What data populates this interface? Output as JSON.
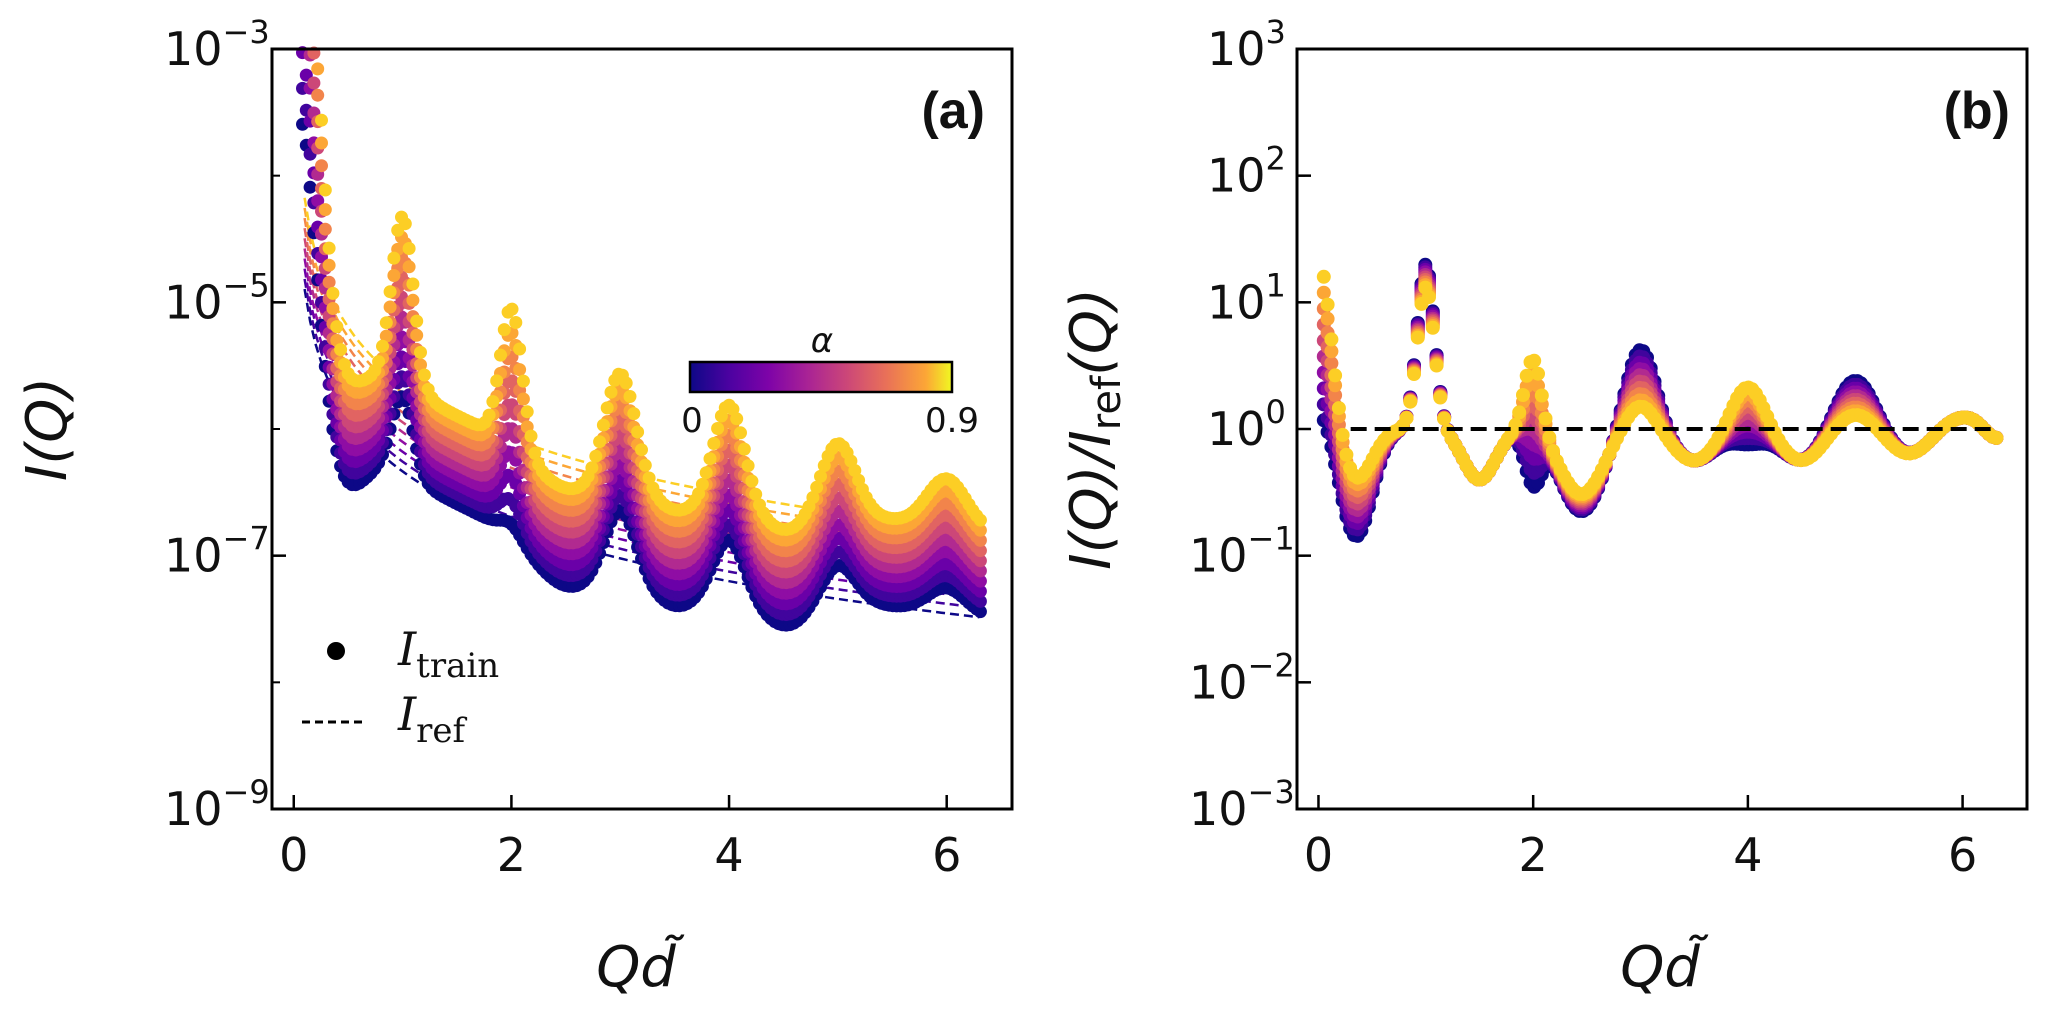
{
  "chart_data": [
    {
      "panel": "(a)",
      "type": "scatter",
      "yscale": "log",
      "xlabel": "Qd̃",
      "ylabel": "I(Q)",
      "xlim": [
        -0.2,
        6.6
      ],
      "ylim": [
        1e-09,
        0.001
      ],
      "xticks": [
        0,
        2,
        4,
        6
      ],
      "xtick_labels": [
        "0",
        "2",
        "4",
        "6"
      ],
      "yticks": [
        1e-09,
        1e-07,
        1e-05,
        0.001
      ],
      "ytick_labels": [
        {
          "base": "10",
          "exp": "−9"
        },
        {
          "base": "10",
          "exp": "−7"
        },
        {
          "base": "10",
          "exp": "−5"
        },
        {
          "base": "10",
          "exp": "−3"
        }
      ],
      "legend": {
        "position": "lower-left",
        "entries": [
          {
            "marker": "dot",
            "main": "I",
            "sub": "train"
          },
          {
            "marker": "dashed-line",
            "main": "I",
            "sub": "ref"
          }
        ]
      },
      "colorbar": {
        "label": "α",
        "min_label": "0",
        "max_label": "0.9",
        "cmap": "plasma",
        "position": "upper-right"
      },
      "series_param": "alpha",
      "alpha_values": [
        0,
        0.1,
        0.2,
        0.3,
        0.4,
        0.5,
        0.6,
        0.7,
        0.8,
        0.9
      ],
      "markers": "points I_train and dashed I_ref per alpha; peaks near Qd̃ = 1, 2, 3, 4, 5, 6",
      "representative_values": {
        "alpha_0": {
          "x": [
            0.1,
            0.5,
            1.0,
            2.0,
            3.0,
            4.0,
            5.0,
            6.3
          ],
          "y": [
            3e-06,
            6e-07,
            3e-05,
            1.2e-07,
            5e-08,
            1.2e-08,
            1e-08,
            4e-09
          ]
        },
        "alpha_0.9": {
          "x": [
            0.1,
            0.7,
            1.0,
            2.0,
            3.0,
            4.0,
            5.0,
            6.3
          ],
          "y": [
            0.001,
            3e-06,
            0.00015,
            1e-05,
            6e-07,
            2e-07,
            1e-07,
            3e-08
          ]
        }
      }
    },
    {
      "panel": "(b)",
      "type": "scatter",
      "yscale": "log",
      "xlabel": "Qd̃",
      "ylabel": "I(Q)/I_ref(Q)",
      "ylabel_parts": {
        "num": "I(Q)/",
        "den_main": "I",
        "den_sub": "ref",
        "den_tail": "(Q)"
      },
      "xlim": [
        -0.2,
        6.6
      ],
      "ylim": [
        0.001,
        1000.0
      ],
      "xticks": [
        0,
        2,
        4,
        6
      ],
      "xtick_labels": [
        "0",
        "2",
        "4",
        "6"
      ],
      "yticks": [
        0.001,
        0.01,
        0.1,
        1.0,
        10.0,
        100.0,
        1000.0
      ],
      "ytick_labels": [
        {
          "base": "10",
          "exp": "−3"
        },
        {
          "base": "10",
          "exp": "−2"
        },
        {
          "base": "10",
          "exp": "−1"
        },
        {
          "base": "10",
          "exp": "0"
        },
        {
          "base": "10",
          "exp": "1"
        },
        {
          "base": "10",
          "exp": "2"
        },
        {
          "base": "10",
          "exp": "3"
        }
      ],
      "reference_line": {
        "y": 1,
        "style": "dashed",
        "color": "#000000",
        "x_range": [
          0.3,
          6.3
        ]
      },
      "alpha_values": [
        0,
        0.1,
        0.2,
        0.3,
        0.4,
        0.5,
        0.6,
        0.7,
        0.8,
        0.9
      ],
      "representative_values": {
        "alpha_0": {
          "x": [
            0.05,
            0.3,
            1.0,
            2.0,
            2.5,
            3.0,
            3.5,
            4.0,
            5.0,
            6.3
          ],
          "y": [
            1.5,
            0.15,
            30,
            0.5,
            0.2,
            4.5,
            0.55,
            1.0,
            2.5,
            0.8
          ]
        },
        "alpha_0.9": {
          "x": [
            0.05,
            0.4,
            1.0,
            1.5,
            2.0,
            2.5,
            3.0,
            4.0,
            5.0,
            6.3
          ],
          "y": [
            28,
            0.35,
            12,
            0.22,
            6,
            0.3,
            1.3,
            2.7,
            1.3,
            0.9
          ]
        }
      }
    }
  ],
  "colors": {
    "cmap_plasma": [
      "#0d0887",
      "#41049d",
      "#6a00a8",
      "#8f0da4",
      "#b12a90",
      "#cc4778",
      "#e16462",
      "#f2844b",
      "#fca636",
      "#fcce25"
    ],
    "axis": "#000000",
    "background": "#ffffff"
  }
}
